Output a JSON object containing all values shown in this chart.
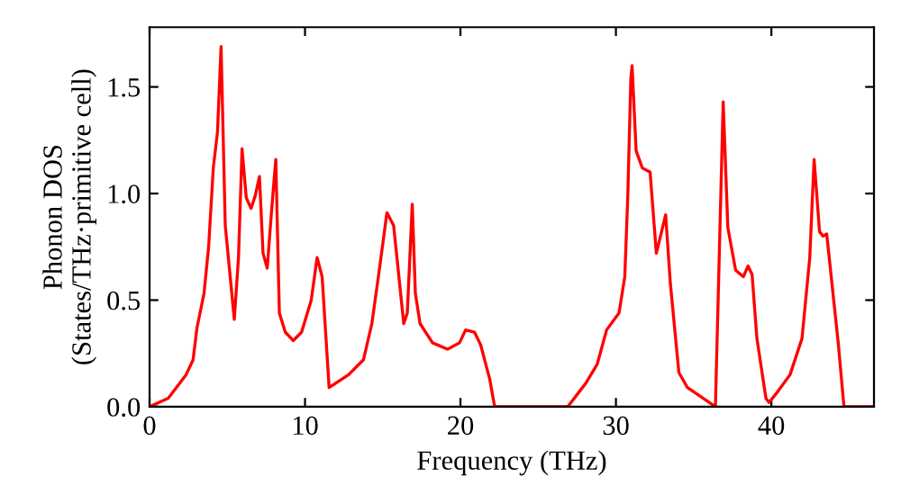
{
  "chart_data": {
    "type": "line",
    "xlabel": "Frequency (THz)",
    "ylabel": "Phonon DOS\n(States/THz·primitive cell)",
    "xlim": [
      0,
      46.6
    ],
    "ylim": [
      0,
      1.78
    ],
    "xticks": [
      0,
      10,
      20,
      30,
      40
    ],
    "yticks": [
      {
        "value": 0,
        "label": "0.0"
      },
      {
        "value": 0.5,
        "label": "0.5"
      },
      {
        "value": 1,
        "label": "1.0"
      },
      {
        "value": 1.5,
        "label": "1.5"
      }
    ],
    "grid": false,
    "legend": false,
    "marker": "none",
    "line_style": "solid",
    "series": [
      {
        "color": "#ff0000",
        "x": [
          0,
          1.2,
          2.35,
          2.8,
          3.05,
          3.5,
          3.8,
          4.1,
          4.37,
          4.6,
          4.87,
          5.45,
          5.72,
          5.95,
          6.22,
          6.53,
          6.8,
          7.07,
          7.3,
          7.57,
          7.85,
          8.12,
          8.35,
          8.73,
          9.24,
          9.78,
          10.4,
          10.78,
          11.1,
          11.55,
          12.8,
          13.76,
          14.3,
          14.72,
          15.27,
          15.7,
          16.35,
          16.58,
          16.9,
          17.1,
          17.4,
          18.2,
          19.17,
          19.94,
          20.33,
          20.9,
          21.3,
          21.88,
          22.2,
          26.9,
          28.06,
          28.8,
          29.4,
          30.2,
          30.57,
          30.76,
          30.96,
          31.04,
          31.3,
          31.7,
          32.2,
          32.6,
          33.2,
          33.5,
          34.05,
          34.6,
          35.6,
          36.4,
          36.9,
          37.2,
          37.7,
          38.2,
          38.5,
          38.76,
          39.07,
          39.65,
          39.85,
          40.4,
          41.2,
          41.97,
          42.47,
          42.75,
          43.1,
          43.33,
          43.56,
          44.3,
          44.67,
          46.6
        ],
        "values": [
          0,
          0.04,
          0.15,
          0.22,
          0.37,
          0.53,
          0.75,
          1.12,
          1.29,
          1.69,
          0.85,
          0.41,
          0.7,
          1.21,
          0.98,
          0.93,
          0.99,
          1.08,
          0.72,
          0.65,
          0.92,
          1.16,
          0.44,
          0.35,
          0.31,
          0.35,
          0.5,
          0.7,
          0.61,
          0.09,
          0.15,
          0.22,
          0.39,
          0.61,
          0.91,
          0.85,
          0.39,
          0.44,
          0.95,
          0.53,
          0.39,
          0.3,
          0.27,
          0.3,
          0.36,
          0.35,
          0.29,
          0.13,
          0,
          0,
          0.11,
          0.2,
          0.36,
          0.44,
          0.61,
          0.98,
          1.54,
          1.6,
          1.2,
          1.12,
          1.1,
          0.72,
          0.9,
          0.58,
          0.16,
          0.09,
          0.04,
          0,
          1.43,
          0.84,
          0.64,
          0.61,
          0.66,
          0.62,
          0.32,
          0.04,
          0.02,
          0.07,
          0.15,
          0.32,
          0.7,
          1.16,
          0.82,
          0.8,
          0.81,
          0.3,
          0,
          0
        ]
      }
    ]
  }
}
